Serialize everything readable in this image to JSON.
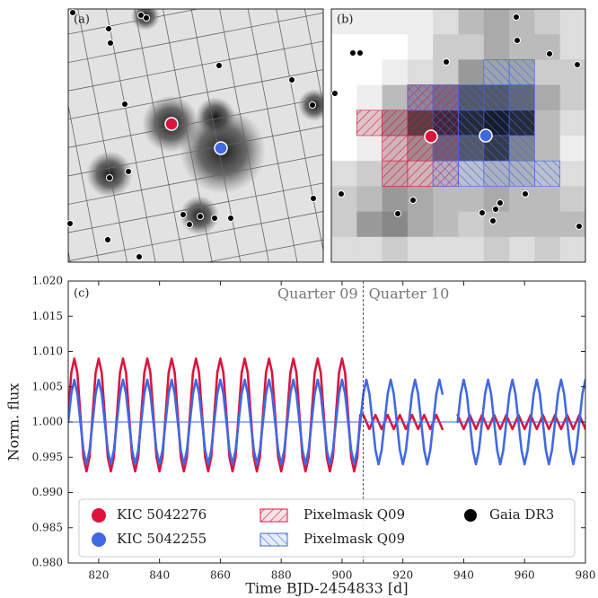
{
  "image_panels": [
    {
      "label": "(a)"
    },
    {
      "label": "(b)"
    }
  ],
  "chart_data": {
    "type": "line",
    "panel_label": "(c)",
    "xlabel": "Time BJD-2454833 [d]",
    "ylabel": "Norm. flux",
    "xlim": [
      810,
      980
    ],
    "ylim": [
      0.98,
      1.02
    ],
    "xticks": [
      820,
      840,
      860,
      880,
      900,
      920,
      940,
      960,
      980
    ],
    "yticks": [
      {
        "value": 0.98,
        "label": "0.980"
      },
      {
        "value": 0.985,
        "label": "0.985"
      },
      {
        "value": 0.99,
        "label": "0.990"
      },
      {
        "value": 0.995,
        "label": "0.995"
      },
      {
        "value": 1.0,
        "label": "1.000"
      },
      {
        "value": 1.005,
        "label": "1.005"
      },
      {
        "value": 1.01,
        "label": "1.010"
      },
      {
        "value": 1.015,
        "label": "1.015"
      },
      {
        "value": 1.02,
        "label": "1.020"
      }
    ],
    "hline": {
      "value": 1.0,
      "color": "#4169e1"
    },
    "vline": {
      "value": 907,
      "labels": [
        "Quarter 09",
        "Quarter 10"
      ]
    },
    "x": [
      810,
      811,
      812,
      813,
      814,
      815,
      816,
      817,
      818,
      819,
      820,
      821,
      822,
      823,
      824,
      825,
      826,
      827,
      828,
      829,
      830,
      831,
      832,
      833,
      834,
      835,
      836,
      837,
      838,
      839,
      840,
      841,
      842,
      843,
      844,
      845,
      846,
      847,
      848,
      849,
      850,
      851,
      852,
      853,
      854,
      855,
      856,
      857,
      858,
      859,
      860,
      861,
      862,
      863,
      864,
      865,
      866,
      867,
      868,
      869,
      870,
      871,
      872,
      873,
      874,
      875,
      876,
      877,
      878,
      879,
      880,
      881,
      882,
      883,
      884,
      885,
      886,
      887,
      888,
      889,
      890,
      891,
      892,
      893,
      894,
      895,
      896,
      897,
      898,
      899,
      900,
      901,
      902,
      903,
      904,
      905,
      906,
      907,
      908,
      909,
      910,
      911,
      912,
      913,
      914,
      915,
      916,
      917,
      918,
      919,
      920,
      921,
      922,
      923,
      924,
      925,
      926,
      927,
      928,
      929,
      930,
      931,
      932,
      933,
      934,
      935,
      936,
      937,
      938,
      939,
      940,
      941,
      942,
      943,
      944,
      945,
      946,
      947,
      948,
      949,
      950,
      951,
      952,
      953,
      954,
      955,
      956,
      957,
      958,
      959,
      960,
      961,
      962,
      963,
      964,
      965,
      966,
      967,
      968,
      969,
      970,
      971,
      972,
      973,
      974,
      975,
      976,
      977,
      978,
      979,
      980
    ],
    "series": [
      {
        "name": "KIC 5042276",
        "color": "#dc143c",
        "values": [
          1.001,
          1.007,
          1.009,
          1.007,
          1.001,
          0.995,
          0.993,
          0.995,
          1.001,
          1.007,
          1.009,
          1.007,
          1.001,
          0.995,
          0.993,
          0.995,
          1.001,
          1.007,
          1.009,
          1.007,
          1.001,
          0.995,
          0.993,
          0.995,
          1.001,
          1.007,
          1.009,
          1.007,
          1.001,
          0.995,
          0.993,
          0.995,
          1.001,
          1.007,
          1.009,
          1.007,
          1.001,
          0.995,
          0.993,
          0.995,
          1.001,
          1.007,
          1.009,
          1.007,
          1.001,
          0.995,
          0.993,
          0.995,
          1.001,
          1.007,
          1.009,
          1.007,
          1.001,
          0.995,
          0.993,
          0.995,
          1.001,
          1.007,
          1.009,
          1.007,
          1.001,
          0.995,
          0.993,
          0.995,
          1.001,
          1.007,
          1.009,
          1.007,
          1.001,
          0.995,
          0.993,
          0.995,
          1.001,
          1.007,
          1.009,
          1.007,
          1.001,
          0.995,
          0.993,
          0.995,
          1.001,
          1.007,
          1.009,
          1.007,
          1.001,
          0.995,
          0.993,
          0.995,
          1.001,
          1.007,
          1.009,
          1.007,
          1.001,
          0.995,
          0.993,
          0.995,
          1.001,
          1.001,
          1.0,
          0.999,
          1.0,
          1.001,
          1.0,
          0.999,
          1.0,
          1.001,
          1.0,
          0.999,
          1.0,
          1.001,
          1.0,
          0.999,
          1.0,
          1.001,
          1.0,
          0.999,
          1.0,
          1.001,
          1.0,
          0.999,
          1.0,
          1.001,
          1.0,
          0.999,
          null,
          null,
          null,
          null,
          1.001,
          1.0,
          0.999,
          1.0,
          1.001,
          1.0,
          0.999,
          1.0,
          1.001,
          1.0,
          0.999,
          1.0,
          1.001,
          1.0,
          0.999,
          1.0,
          1.001,
          1.0,
          0.999,
          1.0,
          1.001,
          1.0,
          0.999,
          1.0,
          1.001,
          1.0,
          0.999,
          1.0,
          1.001,
          1.0,
          0.999,
          1.0,
          1.001,
          1.0,
          0.999,
          1.0,
          1.001,
          1.0,
          0.999,
          1.0,
          1.001,
          1.0,
          0.999
        ]
      },
      {
        "name": "KIC 5042255",
        "color": "#4169e1",
        "values": [
          1.0,
          1.004,
          1.006,
          1.004,
          1.0,
          0.996,
          0.994,
          0.996,
          1.0,
          1.004,
          1.006,
          1.004,
          1.0,
          0.996,
          0.994,
          0.996,
          1.0,
          1.004,
          1.006,
          1.004,
          1.0,
          0.996,
          0.994,
          0.996,
          1.0,
          1.004,
          1.006,
          1.004,
          1.0,
          0.996,
          0.994,
          0.996,
          1.0,
          1.004,
          1.006,
          1.004,
          1.0,
          0.996,
          0.994,
          0.996,
          1.0,
          1.004,
          1.006,
          1.004,
          1.0,
          0.996,
          0.994,
          0.996,
          1.0,
          1.004,
          1.006,
          1.004,
          1.0,
          0.996,
          0.994,
          0.996,
          1.0,
          1.004,
          1.006,
          1.004,
          1.0,
          0.996,
          0.994,
          0.996,
          1.0,
          1.004,
          1.006,
          1.004,
          1.0,
          0.996,
          0.994,
          0.996,
          1.0,
          1.004,
          1.006,
          1.004,
          1.0,
          0.996,
          0.994,
          0.996,
          1.0,
          1.004,
          1.006,
          1.004,
          1.0,
          0.996,
          0.994,
          0.996,
          1.0,
          1.004,
          1.006,
          1.004,
          1.0,
          0.996,
          0.994,
          0.996,
          1.0,
          1.004,
          1.006,
          1.004,
          1.0,
          0.996,
          0.994,
          0.996,
          1.0,
          1.004,
          1.006,
          1.004,
          1.0,
          0.996,
          0.994,
          0.996,
          1.0,
          1.004,
          1.006,
          1.004,
          1.0,
          0.996,
          0.994,
          0.996,
          1.0,
          1.004,
          1.006,
          1.004,
          null,
          null,
          null,
          null,
          1.0,
          1.004,
          1.006,
          1.004,
          1.0,
          0.996,
          0.994,
          0.996,
          1.0,
          1.004,
          1.006,
          1.004,
          1.0,
          0.996,
          0.994,
          0.996,
          1.0,
          1.004,
          1.006,
          1.004,
          1.0,
          0.996,
          0.994,
          0.996,
          1.0,
          1.004,
          1.006,
          1.004,
          1.0,
          0.996,
          0.994,
          0.996,
          1.0,
          1.004,
          1.006,
          1.004,
          1.0,
          0.996,
          0.994,
          0.996,
          1.0,
          1.004,
          1.006
        ]
      }
    ],
    "extra_legend": [
      {
        "name": "Pixelmask Q09",
        "color": "#dc143c"
      },
      {
        "name": "Pixelmask Q09",
        "color": "#4169e1"
      },
      {
        "name": "Gaia DR3",
        "color": "#000000"
      }
    ]
  }
}
